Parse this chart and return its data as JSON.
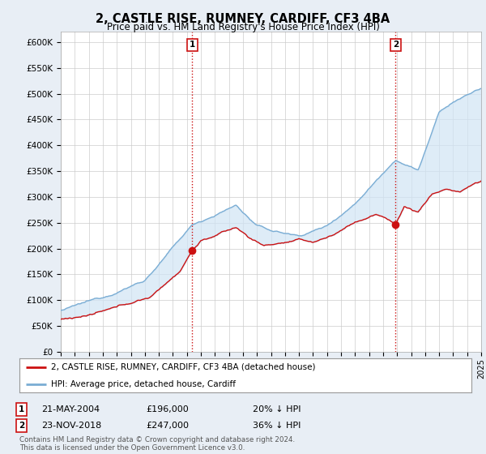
{
  "title": "2, CASTLE RISE, RUMNEY, CARDIFF, CF3 4BA",
  "subtitle": "Price paid vs. HM Land Registry's House Price Index (HPI)",
  "ylabel_ticks": [
    "£0",
    "£50K",
    "£100K",
    "£150K",
    "£200K",
    "£250K",
    "£300K",
    "£350K",
    "£400K",
    "£450K",
    "£500K",
    "£550K",
    "£600K"
  ],
  "ylim": [
    0,
    620000
  ],
  "ytick_values": [
    0,
    50000,
    100000,
    150000,
    200000,
    250000,
    300000,
    350000,
    400000,
    450000,
    500000,
    550000,
    600000
  ],
  "hpi_color": "#7aadd4",
  "hpi_fill_color": "#d0e4f5",
  "price_color": "#cc1111",
  "vline_color": "#cc1111",
  "legend_label1": "2, CASTLE RISE, RUMNEY, CARDIFF, CF3 4BA (detached house)",
  "legend_label2": "HPI: Average price, detached house, Cardiff",
  "footer": "Contains HM Land Registry data © Crown copyright and database right 2024.\nThis data is licensed under the Open Government Licence v3.0.",
  "bg_color": "#e8eef5",
  "plot_bg_color": "#ffffff",
  "start_year": 1995,
  "end_year": 2025,
  "sale1_year": 2004.38,
  "sale1_price": 196000,
  "sale2_year": 2018.9,
  "sale2_price": 247000
}
